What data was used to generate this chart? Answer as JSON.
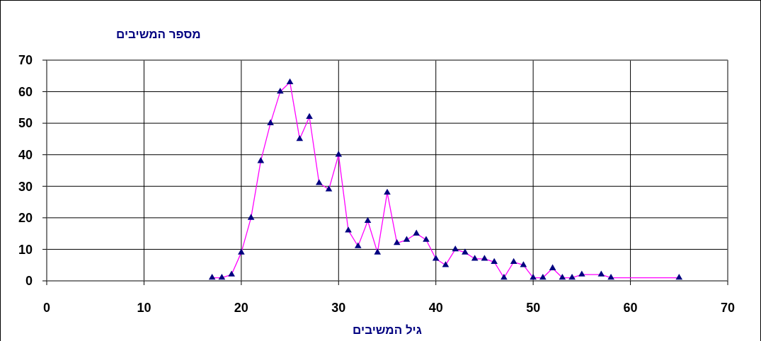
{
  "chart_data": {
    "type": "line",
    "xlabel": "גיל המשיבים",
    "ylabel": "מספר המשיבים",
    "x": [
      17,
      18,
      19,
      20,
      21,
      22,
      23,
      24,
      25,
      26,
      27,
      28,
      29,
      30,
      31,
      32,
      33,
      34,
      35,
      36,
      37,
      38,
      39,
      40,
      41,
      42,
      43,
      44,
      45,
      46,
      47,
      48,
      49,
      50,
      51,
      52,
      53,
      54,
      55,
      57,
      58,
      65
    ],
    "series": [
      {
        "color": "#ff00ff",
        "values": [
          1,
          1,
          2,
          9,
          20,
          38,
          50,
          60,
          63,
          45,
          52,
          31,
          29,
          40,
          16,
          11,
          19,
          9,
          28,
          12,
          13,
          15,
          13,
          7,
          5,
          10,
          9,
          7,
          7,
          6,
          1,
          6,
          5,
          1,
          1,
          4,
          1,
          1,
          2,
          2,
          1,
          1
        ]
      }
    ],
    "xlim": [
      0,
      70
    ],
    "xticks": [
      0,
      10,
      20,
      30,
      40,
      50,
      60,
      70
    ],
    "ylim": [
      0,
      70
    ],
    "yticks": [
      0,
      10,
      20,
      30,
      40,
      50,
      60,
      70
    ],
    "grid": true,
    "marker": "triangle"
  }
}
